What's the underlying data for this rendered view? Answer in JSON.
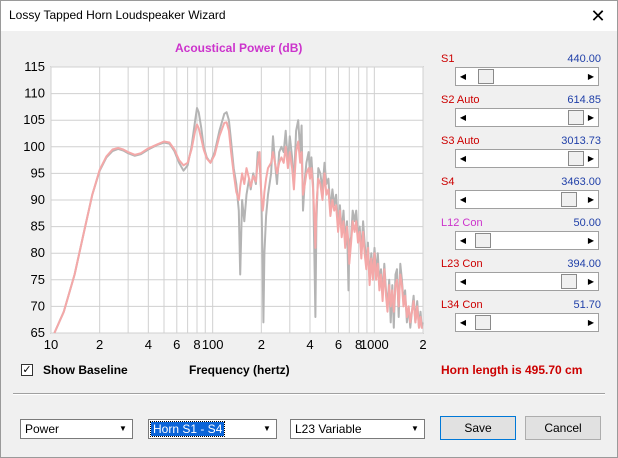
{
  "window": {
    "title": "Lossy Tapped Horn Loudspeaker Wizard",
    "close_glyph": "✕"
  },
  "chart_title": "Acoustical Power (dB)",
  "sliders": [
    {
      "label": "S1",
      "value": "440.00",
      "label_color": "#cc0000",
      "position": 0.08
    },
    {
      "label": "S2  Auto",
      "value": "614.85",
      "label_color": "#cc0000",
      "position": 1.0
    },
    {
      "label": "S3  Auto",
      "value": "3013.73",
      "label_color": "#cc0000",
      "position": 1.0
    },
    {
      "label": "S4",
      "value": "3463.00",
      "label_color": "#cc0000",
      "position": 0.93
    },
    {
      "label": "L12  Con",
      "value": "50.00",
      "label_color": "#cc33cc",
      "position": 0.05
    },
    {
      "label": "L23  Con",
      "value": "394.00",
      "label_color": "#cc0000",
      "position": 0.93
    },
    {
      "label": "L34  Con",
      "value": "51.70",
      "label_color": "#cc0000",
      "position": 0.05
    }
  ],
  "show_baseline": {
    "label": "Show Baseline",
    "checked": true,
    "check_glyph": "✓"
  },
  "horn_length": "Horn length is 495.70 cm",
  "dropdowns": [
    {
      "value": "Power"
    },
    {
      "value": "Horn S1 - S4"
    },
    {
      "value": "L23 Variable"
    }
  ],
  "buttons": {
    "save": "Save",
    "cancel": "Cancel"
  },
  "icons": {
    "arrow_left": "◀",
    "arrow_right": "▶",
    "arrow_down": "▼"
  },
  "colors": {
    "current": "#f4a8a8",
    "baseline": "#b4b4b4"
  },
  "chart_data": {
    "type": "line",
    "title": "Acoustical Power (dB)",
    "xlabel": "Frequency (hertz)",
    "ylabel": "",
    "xscale": "log",
    "xlim": [
      10,
      2000
    ],
    "ylim": [
      65,
      115
    ],
    "y_ticks": [
      65,
      70,
      75,
      80,
      85,
      90,
      95,
      100,
      105,
      110,
      115
    ],
    "x_ticks": [
      {
        "f": 10,
        "label": "10"
      },
      {
        "f": 20,
        "label": "2"
      },
      {
        "f": 40,
        "label": "4"
      },
      {
        "f": 60,
        "label": "6"
      },
      {
        "f": 80,
        "label": "8"
      },
      {
        "f": 100,
        "label": "100"
      },
      {
        "f": 200,
        "label": "2"
      },
      {
        "f": 400,
        "label": "4"
      },
      {
        "f": 600,
        "label": "6"
      },
      {
        "f": 800,
        "label": "8"
      },
      {
        "f": 1000,
        "label": "1000"
      },
      {
        "f": 2000,
        "label": "2"
      }
    ],
    "grid": true,
    "series": [
      {
        "color": "#b4b4b4",
        "points": [
          [
            10.5,
            65
          ],
          [
            12,
            69
          ],
          [
            14,
            76
          ],
          [
            16,
            84
          ],
          [
            18,
            91
          ],
          [
            20,
            95.5
          ],
          [
            22,
            98
          ],
          [
            24,
            99.2
          ],
          [
            26,
            99.6
          ],
          [
            28,
            99.3
          ],
          [
            30,
            98.8
          ],
          [
            33,
            98.3
          ],
          [
            36,
            98.6
          ],
          [
            40,
            99.5
          ],
          [
            45,
            100.3
          ],
          [
            50,
            100.8
          ],
          [
            54,
            100.6
          ],
          [
            58,
            99.2
          ],
          [
            62,
            97
          ],
          [
            66,
            95.5
          ],
          [
            70,
            96.5
          ],
          [
            74,
            100
          ],
          [
            78,
            105
          ],
          [
            80,
            107.3
          ],
          [
            82,
            106.5
          ],
          [
            85,
            103.5
          ],
          [
            88,
            100
          ],
          [
            92,
            98
          ],
          [
            97,
            97
          ],
          [
            103,
            99
          ],
          [
            110,
            103
          ],
          [
            118,
            106.2
          ],
          [
            122,
            106.5
          ],
          [
            126,
            105
          ],
          [
            130,
            101
          ],
          [
            135,
            96
          ],
          [
            140,
            93
          ],
          [
            145,
            88
          ],
          [
            148,
            76
          ],
          [
            152,
            90
          ],
          [
            157,
            86
          ],
          [
            162,
            91
          ],
          [
            168,
            94
          ],
          [
            172,
            92
          ],
          [
            178,
            95
          ],
          [
            185,
            93
          ],
          [
            190,
            99
          ],
          [
            195,
            97
          ],
          [
            200,
            91
          ],
          [
            204,
            78
          ],
          [
            206,
            67
          ],
          [
            209,
            80
          ],
          [
            214,
            87
          ],
          [
            220,
            91
          ],
          [
            230,
            95
          ],
          [
            236,
            102
          ],
          [
            243,
            97
          ],
          [
            250,
            93
          ],
          [
            258,
            99
          ],
          [
            266,
            100
          ],
          [
            275,
            99
          ],
          [
            283,
            103
          ],
          [
            292,
            97
          ],
          [
            300,
            102
          ],
          [
            310,
            98
          ],
          [
            318,
            93
          ],
          [
            328,
            103
          ],
          [
            338,
            105
          ],
          [
            348,
            99
          ],
          [
            355,
            104
          ],
          [
            362,
            88
          ],
          [
            372,
            94
          ],
          [
            380,
            97
          ],
          [
            392,
            99
          ],
          [
            400,
            95
          ],
          [
            408,
            98
          ],
          [
            418,
            93
          ],
          [
            428,
            75
          ],
          [
            432,
            68
          ],
          [
            438,
            86
          ],
          [
            450,
            96
          ],
          [
            463,
            95
          ],
          [
            478,
            92
          ],
          [
            492,
            97
          ],
          [
            505,
            93
          ],
          [
            520,
            94
          ],
          [
            535,
            88
          ],
          [
            550,
            92
          ],
          [
            565,
            89
          ],
          [
            580,
            91
          ],
          [
            597,
            85
          ],
          [
            612,
            89
          ],
          [
            628,
            84
          ],
          [
            645,
            88
          ],
          [
            660,
            82
          ],
          [
            678,
            86
          ],
          [
            692,
            73
          ],
          [
            700,
            82
          ],
          [
            718,
            83
          ],
          [
            735,
            88
          ],
          [
            755,
            86
          ],
          [
            772,
            88
          ],
          [
            792,
            83
          ],
          [
            812,
            85
          ],
          [
            830,
            80
          ],
          [
            852,
            86
          ],
          [
            870,
            82
          ],
          [
            892,
            78
          ],
          [
            912,
            82
          ],
          [
            935,
            75
          ],
          [
            958,
            80
          ],
          [
            980,
            76
          ],
          [
            1002,
            81
          ],
          [
            1025,
            76
          ],
          [
            1050,
            80
          ],
          [
            1075,
            74
          ],
          [
            1100,
            77
          ],
          [
            1125,
            72
          ],
          [
            1152,
            78
          ],
          [
            1180,
            73
          ],
          [
            1206,
            70
          ],
          [
            1235,
            75
          ],
          [
            1262,
            67
          ],
          [
            1292,
            74
          ],
          [
            1320,
            66
          ],
          [
            1352,
            76
          ],
          [
            1382,
            77
          ],
          [
            1415,
            68
          ],
          [
            1448,
            78
          ],
          [
            1480,
            75
          ],
          [
            1515,
            71
          ],
          [
            1550,
            73
          ],
          [
            1590,
            67
          ],
          [
            1628,
            70
          ],
          [
            1668,
            66
          ],
          [
            1708,
            69
          ],
          [
            1750,
            72
          ],
          [
            1795,
            67
          ],
          [
            1842,
            71
          ],
          [
            1888,
            66
          ],
          [
            1930,
            69
          ],
          [
            1965,
            66
          ],
          [
            1995,
            67
          ]
        ]
      },
      {
        "color": "#f4a8a8",
        "points": [
          [
            10.5,
            65
          ],
          [
            12,
            69
          ],
          [
            14,
            76
          ],
          [
            16,
            84
          ],
          [
            18,
            91
          ],
          [
            20,
            95.7
          ],
          [
            22,
            98.2
          ],
          [
            24,
            99.5
          ],
          [
            26,
            99.8
          ],
          [
            28,
            99.5
          ],
          [
            30,
            99
          ],
          [
            33,
            98.5
          ],
          [
            36,
            98.8
          ],
          [
            40,
            99.7
          ],
          [
            45,
            100.4
          ],
          [
            50,
            101
          ],
          [
            54,
            100.8
          ],
          [
            58,
            99.5
          ],
          [
            62,
            97.5
          ],
          [
            66,
            96.5
          ],
          [
            70,
            97
          ],
          [
            74,
            99.5
          ],
          [
            78,
            103
          ],
          [
            80,
            104.2
          ],
          [
            82,
            103.5
          ],
          [
            85,
            101.5
          ],
          [
            88,
            99.5
          ],
          [
            92,
            97.8
          ],
          [
            97,
            97
          ],
          [
            103,
            98.5
          ],
          [
            110,
            102
          ],
          [
            118,
            104.5
          ],
          [
            122,
            104.6
          ],
          [
            126,
            103
          ],
          [
            130,
            99
          ],
          [
            135,
            95
          ],
          [
            140,
            91.5
          ],
          [
            145,
            90
          ],
          [
            148,
            92.5
          ],
          [
            152,
            95
          ],
          [
            157,
            93
          ],
          [
            162,
            96
          ],
          [
            168,
            94
          ],
          [
            172,
            92.5
          ],
          [
            178,
            94.5
          ],
          [
            185,
            93.5
          ],
          [
            190,
            97
          ],
          [
            195,
            99
          ],
          [
            200,
            91
          ],
          [
            204,
            88
          ],
          [
            206,
            89
          ],
          [
            209,
            91.5
          ],
          [
            214,
            94
          ],
          [
            220,
            96
          ],
          [
            230,
            97
          ],
          [
            236,
            99
          ],
          [
            243,
            97
          ],
          [
            250,
            95
          ],
          [
            258,
            97
          ],
          [
            266,
            98
          ],
          [
            275,
            97
          ],
          [
            283,
            100
          ],
          [
            292,
            96
          ],
          [
            300,
            99
          ],
          [
            310,
            96
          ],
          [
            318,
            92
          ],
          [
            328,
            99
          ],
          [
            338,
            101
          ],
          [
            348,
            97
          ],
          [
            355,
            99
          ],
          [
            362,
            91
          ],
          [
            372,
            93
          ],
          [
            380,
            95
          ],
          [
            392,
            96
          ],
          [
            400,
            94
          ],
          [
            408,
            96
          ],
          [
            418,
            92
          ],
          [
            428,
            85
          ],
          [
            432,
            81
          ],
          [
            438,
            89
          ],
          [
            450,
            94
          ],
          [
            463,
            93
          ],
          [
            478,
            90
          ],
          [
            492,
            95
          ],
          [
            505,
            91
          ],
          [
            520,
            92
          ],
          [
            535,
            87
          ],
          [
            550,
            90
          ],
          [
            565,
            88
          ],
          [
            580,
            89
          ],
          [
            597,
            84
          ],
          [
            612,
            88
          ],
          [
            628,
            83
          ],
          [
            645,
            86
          ],
          [
            660,
            81
          ],
          [
            678,
            85
          ],
          [
            692,
            82
          ],
          [
            700,
            78
          ],
          [
            718,
            82
          ],
          [
            735,
            86
          ],
          [
            755,
            84
          ],
          [
            772,
            86
          ],
          [
            792,
            82
          ],
          [
            812,
            84
          ],
          [
            830,
            79
          ],
          [
            852,
            84
          ],
          [
            870,
            80
          ],
          [
            892,
            77
          ],
          [
            912,
            81
          ],
          [
            935,
            74
          ],
          [
            958,
            79
          ],
          [
            980,
            75
          ],
          [
            1002,
            80
          ],
          [
            1025,
            75
          ],
          [
            1050,
            78
          ],
          [
            1075,
            73
          ],
          [
            1100,
            76
          ],
          [
            1125,
            71
          ],
          [
            1152,
            77
          ],
          [
            1180,
            72
          ],
          [
            1206,
            69
          ],
          [
            1235,
            74
          ],
          [
            1262,
            70
          ],
          [
            1292,
            73
          ],
          [
            1320,
            69
          ],
          [
            1352,
            74
          ],
          [
            1382,
            75
          ],
          [
            1415,
            70
          ],
          [
            1448,
            76
          ],
          [
            1480,
            74
          ],
          [
            1515,
            70
          ],
          [
            1550,
            72
          ],
          [
            1590,
            68
          ],
          [
            1628,
            70
          ],
          [
            1668,
            67
          ],
          [
            1708,
            69
          ],
          [
            1750,
            71
          ],
          [
            1795,
            67
          ],
          [
            1842,
            70
          ],
          [
            1888,
            66
          ],
          [
            1930,
            68
          ],
          [
            1965,
            66
          ],
          [
            1995,
            66
          ]
        ]
      }
    ]
  }
}
